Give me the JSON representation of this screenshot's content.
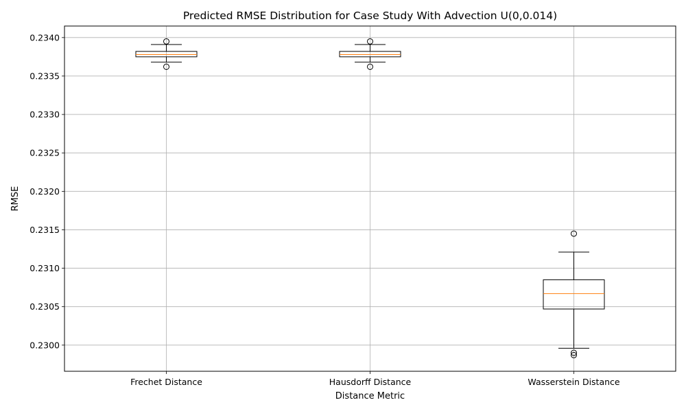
{
  "chart_data": {
    "type": "box",
    "title": "Predicted RMSE Distribution for Case Study With Advection U(0,0.014)",
    "xlabel": "Distance Metric",
    "ylabel": "RMSE",
    "ylim": [
      0.22966,
      0.23415
    ],
    "yticks": [
      "0.2300",
      "0.2305",
      "0.2310",
      "0.2315",
      "0.2320",
      "0.2325",
      "0.2330",
      "0.2335",
      "0.2340"
    ],
    "grid": true,
    "categories": [
      "Frechet Distance",
      "Hausdorff Distance",
      "Wasserstein Distance"
    ],
    "boxes": [
      {
        "whislo": 0.23368,
        "q1": 0.23375,
        "med": 0.23378,
        "q3": 0.23382,
        "whishi": 0.23391,
        "fliers": [
          0.23395,
          0.23362
        ]
      },
      {
        "whislo": 0.23368,
        "q1": 0.23375,
        "med": 0.23378,
        "q3": 0.23382,
        "whishi": 0.23391,
        "fliers": [
          0.23395,
          0.23362
        ]
      },
      {
        "whislo": 0.22996,
        "q1": 0.23047,
        "med": 0.23067,
        "q3": 0.23085,
        "whishi": 0.23121,
        "fliers": [
          0.23145,
          0.2299,
          0.22987
        ]
      }
    ],
    "colors": {
      "box": "#000000",
      "median": "#ff7f0e",
      "grid": "#b0b0b0"
    }
  }
}
